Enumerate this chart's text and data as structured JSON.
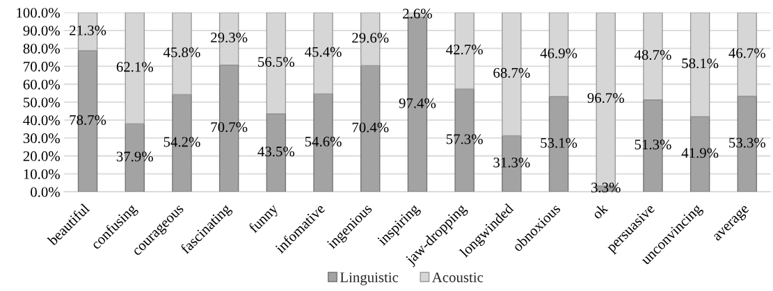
{
  "chart_data": {
    "type": "bar",
    "stacked": true,
    "categories": [
      "beautiful",
      "confusing",
      "courageous",
      "fascinating",
      "funny",
      "infomative",
      "ingenious",
      "inspiring",
      "jaw-dropping",
      "longwinded",
      "obnoxious",
      "ok",
      "persuasive",
      "unconvincing",
      "average"
    ],
    "series": [
      {
        "name": "Linguistic",
        "color": "#a3a3a3",
        "values": [
          78.7,
          37.9,
          54.2,
          70.7,
          43.5,
          54.6,
          70.4,
          97.4,
          57.3,
          31.3,
          53.1,
          3.3,
          51.3,
          41.9,
          53.3
        ],
        "value_labels": [
          "78.7%",
          "37.9%",
          "54.2%",
          "70.7%",
          "43.5%",
          "54.6%",
          "70.4%",
          "97.4%",
          "57.3%",
          "31.3%",
          "53.1%",
          "3.3%",
          "51.3%",
          "41.9%",
          "53.3%"
        ]
      },
      {
        "name": "Acoustic",
        "color": "#d6d6d6",
        "values": [
          21.3,
          62.1,
          45.8,
          29.3,
          56.5,
          45.4,
          29.6,
          2.6,
          42.7,
          68.7,
          46.9,
          96.7,
          48.7,
          58.1,
          46.7
        ],
        "value_labels": [
          "21.3%",
          "62.1%",
          "45.8%",
          "29.3%",
          "56.5%",
          "45.4%",
          "29.6%",
          "2.6%",
          "42.7%",
          "68.7%",
          "46.9%",
          "96.7%",
          "48.7%",
          "58.1%",
          "46.7%"
        ]
      }
    ],
    "ylim": [
      0,
      100
    ],
    "yticks": [
      {
        "value": 0,
        "label": "0.0%"
      },
      {
        "value": 10,
        "label": "10.0%"
      },
      {
        "value": 20,
        "label": "20.0%"
      },
      {
        "value": 30,
        "label": "30.0%"
      },
      {
        "value": 40,
        "label": "40.0%"
      },
      {
        "value": 50,
        "label": "50.0%"
      },
      {
        "value": 60,
        "label": "60.0%"
      },
      {
        "value": 70,
        "label": "70.0%"
      },
      {
        "value": 80,
        "label": "80.0%"
      },
      {
        "value": 90,
        "label": "90.0%"
      },
      {
        "value": 100,
        "label": "100.0%"
      }
    ],
    "grid": "y",
    "legend": "bottom"
  }
}
